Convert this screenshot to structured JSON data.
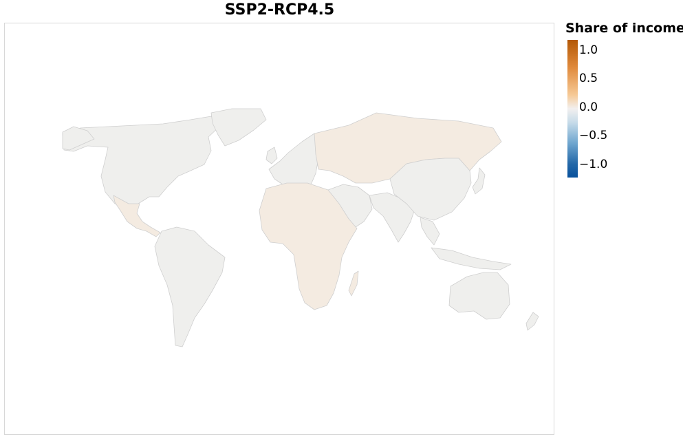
{
  "title": "SSP2-RCP4.5",
  "legend": {
    "title": "Share of income",
    "ticks": [
      "1.0",
      "0.5",
      "0.0",
      "−0.5",
      "−1.0"
    ],
    "colors": {
      "max": "#b35806",
      "positive_mid": "#f6c996",
      "zero": "#f2f0ef",
      "negative_mid": "#6fa6cf",
      "min": "#08519c"
    }
  },
  "map": {
    "land_color_neutral": "#efefed",
    "land_color_slightly_positive": "#f4ebe1",
    "border_color": "#cfcfcf",
    "regions": [
      {
        "name": "North America",
        "shade": "neutral"
      },
      {
        "name": "Greenland",
        "shade": "neutral"
      },
      {
        "name": "Mexico and Central America",
        "shade": "slightly_positive"
      },
      {
        "name": "South America",
        "shade": "neutral"
      },
      {
        "name": "Europe",
        "shade": "neutral"
      },
      {
        "name": "Russia and Central Asia",
        "shade": "slightly_positive"
      },
      {
        "name": "Africa",
        "shade": "slightly_positive"
      },
      {
        "name": "Middle East",
        "shade": "neutral"
      },
      {
        "name": "South Asia",
        "shade": "neutral"
      },
      {
        "name": "China and East Asia",
        "shade": "neutral"
      },
      {
        "name": "Southeast Asia",
        "shade": "neutral"
      },
      {
        "name": "Australia and Oceania",
        "shade": "neutral"
      }
    ]
  }
}
